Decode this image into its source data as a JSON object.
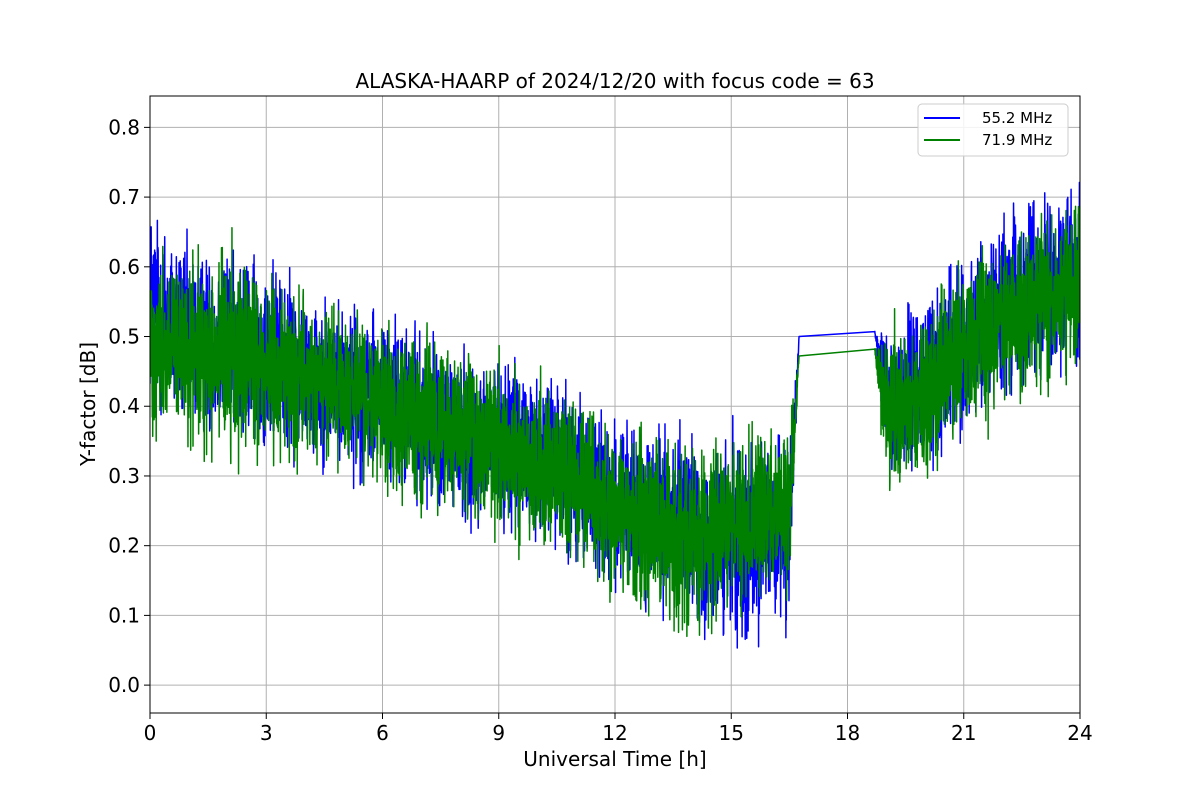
{
  "chart_data": {
    "type": "line",
    "title": "ALASKA-HAARP of 2024/12/20 with focus code = 63",
    "xlabel": "Universal Time [h]",
    "ylabel": "Y-factor [dB]",
    "xlim": [
      0,
      24
    ],
    "ylim": [
      -0.04,
      0.845
    ],
    "xticks": [
      0,
      3,
      6,
      9,
      12,
      15,
      18,
      21,
      24
    ],
    "xtick_labels": [
      "0",
      "3",
      "6",
      "9",
      "12",
      "15",
      "18",
      "21",
      "24"
    ],
    "yticks": [
      0.0,
      0.1,
      0.2,
      0.3,
      0.4,
      0.5,
      0.6,
      0.7,
      0.8
    ],
    "ytick_labels": [
      "0.0",
      "0.1",
      "0.2",
      "0.3",
      "0.4",
      "0.5",
      "0.6",
      "0.7",
      "0.8"
    ],
    "grid": true,
    "legend_position": "top-right",
    "series": [
      {
        "name": "55.2 MHz",
        "color": "#0000ff",
        "x": [
          0,
          0.5,
          1,
          1.5,
          2,
          2.5,
          3,
          3.5,
          4,
          4.5,
          5,
          5.5,
          6,
          6.5,
          7,
          7.5,
          8,
          8.5,
          9,
          9.5,
          10,
          10.5,
          11,
          11.5,
          12,
          12.5,
          13,
          13.5,
          14,
          14.5,
          15,
          15.5,
          16,
          16.5,
          16.75,
          18.7,
          19,
          19.5,
          20,
          20.5,
          21,
          21.5,
          22,
          22.5,
          23,
          23.5,
          24
        ],
        "y": [
          0.55,
          0.52,
          0.5,
          0.49,
          0.49,
          0.48,
          0.48,
          0.46,
          0.45,
          0.44,
          0.43,
          0.42,
          0.41,
          0.4,
          0.38,
          0.37,
          0.36,
          0.35,
          0.34,
          0.34,
          0.33,
          0.32,
          0.3,
          0.28,
          0.26,
          0.25,
          0.24,
          0.23,
          0.22,
          0.2,
          0.2,
          0.21,
          0.22,
          0.22,
          0.5,
          0.507,
          0.4,
          0.42,
          0.44,
          0.46,
          0.49,
          0.52,
          0.54,
          0.56,
          0.58,
          0.59,
          0.6
        ],
        "band": [
          0.12,
          0.12,
          0.11,
          0.11,
          0.11,
          0.11,
          0.11,
          0.11,
          0.1,
          0.1,
          0.1,
          0.1,
          0.1,
          0.1,
          0.1,
          0.1,
          0.1,
          0.1,
          0.1,
          0.1,
          0.1,
          0.1,
          0.1,
          0.1,
          0.1,
          0.1,
          0.11,
          0.11,
          0.12,
          0.12,
          0.12,
          0.12,
          0.11,
          0.1,
          0,
          0,
          0.1,
          0.1,
          0.1,
          0.1,
          0.1,
          0.1,
          0.1,
          0.11,
          0.11,
          0.11,
          0.11
        ]
      },
      {
        "name": "71.9 MHz",
        "color": "#008000",
        "x": [
          0,
          0.5,
          1,
          1.5,
          2,
          2.5,
          3,
          3.5,
          4,
          4.5,
          5,
          5.5,
          6,
          6.5,
          7,
          7.5,
          8,
          8.5,
          9,
          9.5,
          10,
          10.5,
          11,
          11.5,
          12,
          12.5,
          13,
          13.5,
          14,
          14.5,
          15,
          15.5,
          16,
          16.5,
          16.75,
          18.7,
          19,
          19.5,
          20,
          20.5,
          21,
          21.5,
          22,
          22.5,
          23,
          23.5,
          24
        ],
        "y": [
          0.5,
          0.48,
          0.47,
          0.47,
          0.48,
          0.47,
          0.46,
          0.45,
          0.44,
          0.43,
          0.42,
          0.41,
          0.4,
          0.39,
          0.38,
          0.37,
          0.36,
          0.35,
          0.34,
          0.33,
          0.32,
          0.31,
          0.29,
          0.27,
          0.25,
          0.24,
          0.23,
          0.22,
          0.22,
          0.22,
          0.23,
          0.24,
          0.25,
          0.24,
          0.472,
          0.482,
          0.38,
          0.4,
          0.42,
          0.45,
          0.48,
          0.5,
          0.52,
          0.53,
          0.55,
          0.56,
          0.57
        ],
        "band": [
          0.11,
          0.11,
          0.11,
          0.11,
          0.12,
          0.12,
          0.11,
          0.11,
          0.1,
          0.1,
          0.1,
          0.1,
          0.1,
          0.1,
          0.1,
          0.1,
          0.1,
          0.1,
          0.1,
          0.1,
          0.1,
          0.1,
          0.1,
          0.1,
          0.1,
          0.1,
          0.1,
          0.11,
          0.11,
          0.11,
          0.11,
          0.11,
          0.1,
          0.1,
          0,
          0,
          0.1,
          0.1,
          0.1,
          0.1,
          0.1,
          0.1,
          0.1,
          0.1,
          0.1,
          0.1,
          0.11
        ]
      }
    ]
  }
}
